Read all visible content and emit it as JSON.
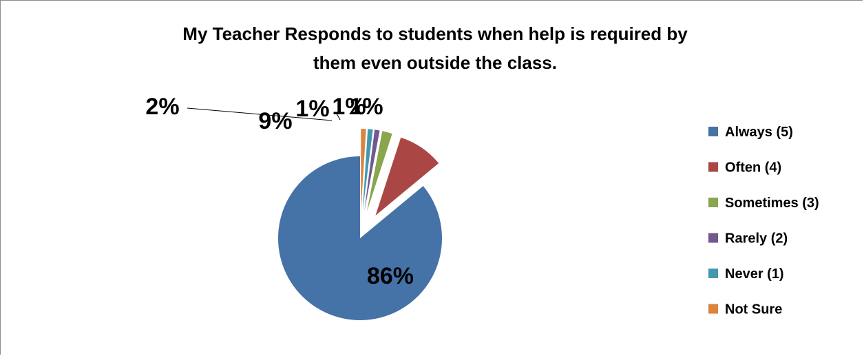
{
  "chart_data": {
    "type": "pie",
    "title_lines": [
      "My Teacher Responds to students when help is required by",
      "them even outside the class."
    ],
    "slices": [
      {
        "name": "Always (5)",
        "value": 86,
        "label": "86%",
        "color": "#4572A7"
      },
      {
        "name": "Often (4)",
        "value": 9,
        "label": "9%",
        "color": "#AA4643"
      },
      {
        "name": "Sometimes (3)",
        "value": 2,
        "label": "2%",
        "color": "#89A54E"
      },
      {
        "name": "Rarely (2)",
        "value": 1,
        "label": "1%",
        "color": "#71588F"
      },
      {
        "name": "Never (1)",
        "value": 1,
        "label": "1%",
        "color": "#4198AF"
      },
      {
        "name": "Not Sure",
        "value": 1,
        "label": "1%",
        "color": "#DB843D"
      }
    ],
    "legend_position": "right"
  }
}
